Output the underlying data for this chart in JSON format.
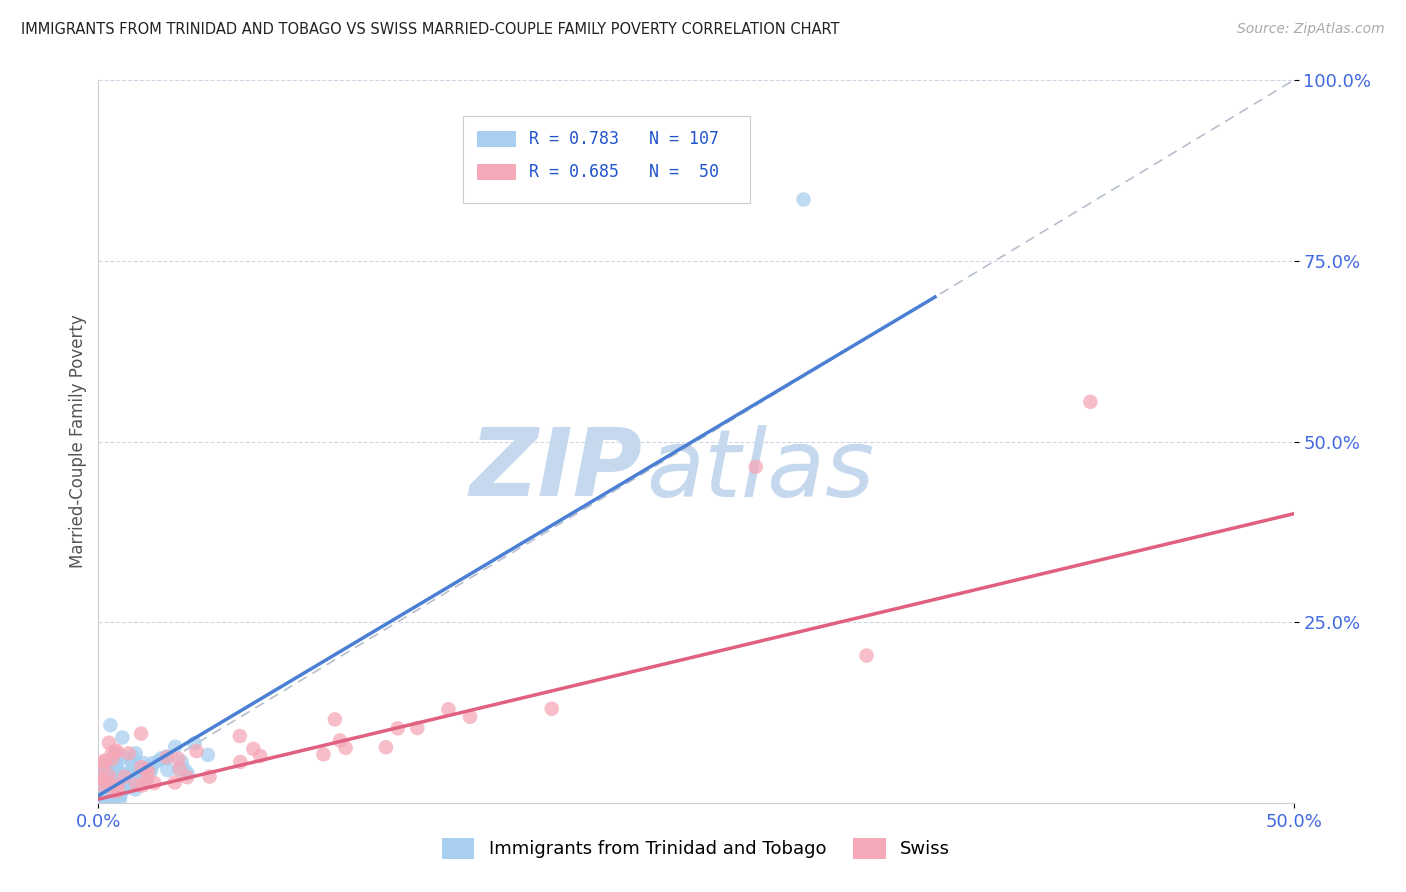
{
  "title": "IMMIGRANTS FROM TRINIDAD AND TOBAGO VS SWISS MARRIED-COUPLE FAMILY POVERTY CORRELATION CHART",
  "source": "Source: ZipAtlas.com",
  "ylabel": "Married-Couple Family Poverty",
  "xlim": [
    0.0,
    0.5
  ],
  "ylim": [
    0.0,
    1.0
  ],
  "blue_R": 0.783,
  "blue_N": 107,
  "pink_R": 0.685,
  "pink_N": 50,
  "blue_color": "#a8cff0",
  "pink_color": "#f5a8b8",
  "blue_line_color": "#4a7fd4",
  "pink_line_color": "#e06080",
  "diag_line_color": "#b0b8c8",
  "legend_label_blue": "Immigrants from Trinidad and Tobago",
  "legend_label_pink": "Swiss",
  "background_color": "#ffffff",
  "blue_line_x0": 0.0,
  "blue_line_y0": 0.01,
  "blue_line_x1": 0.35,
  "blue_line_y1": 0.7,
  "pink_line_x0": 0.0,
  "pink_line_y0": 0.005,
  "pink_line_x1": 0.5,
  "pink_line_y1": 0.4,
  "watermark_zip_color": "#c8dff0",
  "watermark_atlas_color": "#c8dff0"
}
